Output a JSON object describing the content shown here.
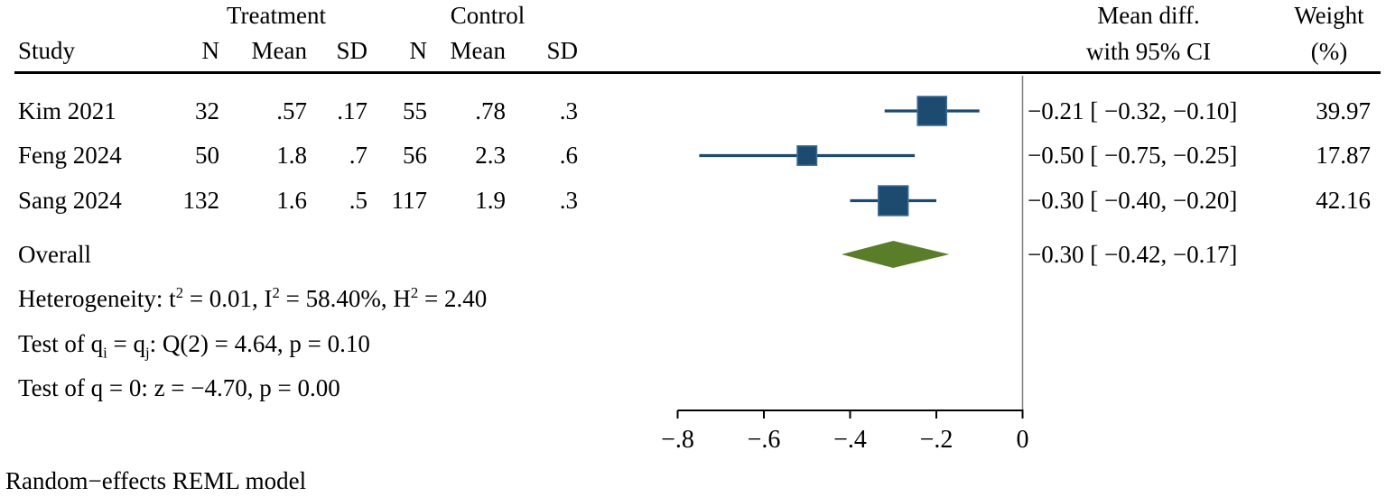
{
  "colors": {
    "navy": "#1d4a6f",
    "navy_edge": "#3f6e99",
    "green": "#5a7d2a",
    "zero_line": "#7f7f7f",
    "axis": "#000000"
  },
  "header": {
    "group_treatment": "Treatment",
    "group_control": "Control",
    "study": "Study",
    "col_n1": "N",
    "col_mean1": "Mean",
    "col_sd1": "SD",
    "col_n2": "N",
    "col_mean2": "Mean",
    "col_sd2": "SD",
    "effect_line1": "Mean diff.",
    "effect_line2": "with 95% CI",
    "weight_line1": "Weight",
    "weight_line2": "(%)"
  },
  "table": {
    "studies": [
      {
        "name": "Kim 2021",
        "t_n": "32",
        "t_mean": ".57",
        "t_sd": ".17",
        "c_n": "55",
        "c_mean": ".78",
        "c_sd": ".3",
        "ci_text": "−0.21 [ −0.32, −0.10]",
        "weight": "39.97"
      },
      {
        "name": "Feng 2024",
        "t_n": "50",
        "t_mean": "1.8",
        "t_sd": ".7",
        "c_n": "56",
        "c_mean": "2.3",
        "c_sd": ".6",
        "ci_text": "−0.50 [ −0.75, −0.25]",
        "weight": "17.87"
      },
      {
        "name": "Sang 2024",
        "t_n": "132",
        "t_mean": "1.6",
        "t_sd": ".5",
        "c_n": "117",
        "c_mean": "1.9",
        "c_sd": ".3",
        "ci_text": "−0.30 [ −0.40, −0.20]",
        "weight": "42.16"
      }
    ],
    "overall": {
      "label": "Overall",
      "ci_text": "−0.30 [ −0.42, −0.17]"
    }
  },
  "stats": {
    "het": [
      "Heterogeneity: t",
      "2",
      " = 0.01, I",
      "2",
      " = 58.40%, H",
      "2",
      " = 2.40"
    ],
    "test_q": [
      "Test of q",
      "i",
      " = q",
      "j",
      ": Q(2) = 4.64, p = 0.10"
    ],
    "test_z": "Test of q = 0: z = −4.70, p = 0.00"
  },
  "footer": "Random−effects REML model",
  "chart_data": {
    "type": "forest",
    "effect_measure": "Mean diff. with 95% CI",
    "model": "Random-effects REML",
    "x_ticks": [
      -0.8,
      -0.6,
      -0.4,
      -0.2,
      0
    ],
    "x_tick_labels": [
      "−.8",
      "−.6",
      "−.4",
      "−.2",
      "0"
    ],
    "xlim": [
      -0.85,
      0.02
    ],
    "zero_line_x": 0,
    "studies": [
      {
        "name": "Kim 2021",
        "est": -0.21,
        "lo": -0.32,
        "hi": -0.1,
        "weight": 39.97
      },
      {
        "name": "Feng 2024",
        "est": -0.5,
        "lo": -0.75,
        "hi": -0.25,
        "weight": 17.87
      },
      {
        "name": "Sang 2024",
        "est": -0.3,
        "lo": -0.4,
        "hi": -0.2,
        "weight": 42.16
      }
    ],
    "overall": {
      "est": -0.3,
      "lo": -0.42,
      "hi": -0.17
    },
    "heterogeneity": {
      "tau2": 0.01,
      "I2_pct": 58.4,
      "H2": 2.4,
      "Q": 4.64,
      "Q_df": 2,
      "p_Q": 0.1,
      "z": -4.7,
      "p_z": 0.0
    }
  }
}
